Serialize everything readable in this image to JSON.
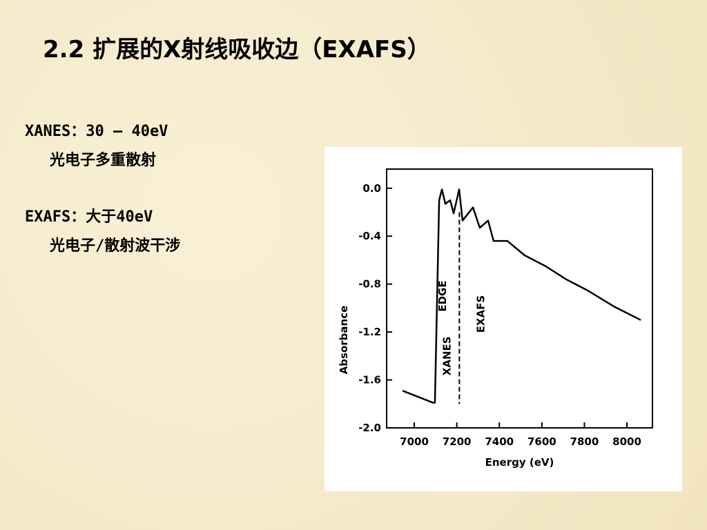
{
  "title": "2.2 扩展的X射线吸收边（EXAFS）",
  "notes": [
    {
      "heading": "XANES：30 – 40eV",
      "text": "光电子多重散射"
    },
    {
      "heading": "EXAFS：大于40eV",
      "text": "光电子/散射波干涉"
    }
  ],
  "chart_data": {
    "type": "line",
    "x_label": "Energy (eV)",
    "y_label": "Absorbance",
    "x": [
      6945,
      7088,
      7097,
      7117,
      7130,
      7146,
      7169,
      7185,
      7211,
      7227,
      7276,
      7308,
      7347,
      7373,
      7438,
      7519,
      7617,
      7714,
      7812,
      7942,
      8065
    ],
    "values": [
      -1.69,
      -1.79,
      -1.79,
      -0.1,
      -0.01,
      -0.13,
      -0.1,
      -0.21,
      -0.01,
      -0.27,
      -0.16,
      -0.33,
      -0.27,
      -0.44,
      -0.44,
      -0.56,
      -0.65,
      -0.76,
      -0.85,
      -0.99,
      -1.1
    ],
    "color": "#000000",
    "xlim": [
      6870,
      8120
    ],
    "ylim": [
      -2.0,
      0.16
    ],
    "xticks": [
      7000,
      7200,
      7400,
      7600,
      7800,
      8000
    ],
    "yticks": [
      {
        "value": 0,
        "label": "0.0"
      },
      -0.4,
      -0.8,
      -1.2,
      -1.6,
      {
        "value": -2.0,
        "label": "-2.0"
      }
    ],
    "divider": {
      "x": 7212,
      "ylim": [
        -0.2,
        -1.8
      ]
    },
    "annotations": [
      {
        "text": "EDGE",
        "x": 7150,
        "y": -0.9
      },
      {
        "text": "XANES",
        "x": 7170,
        "y": -1.4
      },
      {
        "text": "EXAFS",
        "x": 7330,
        "y": -1.05
      }
    ],
    "grid": false
  }
}
